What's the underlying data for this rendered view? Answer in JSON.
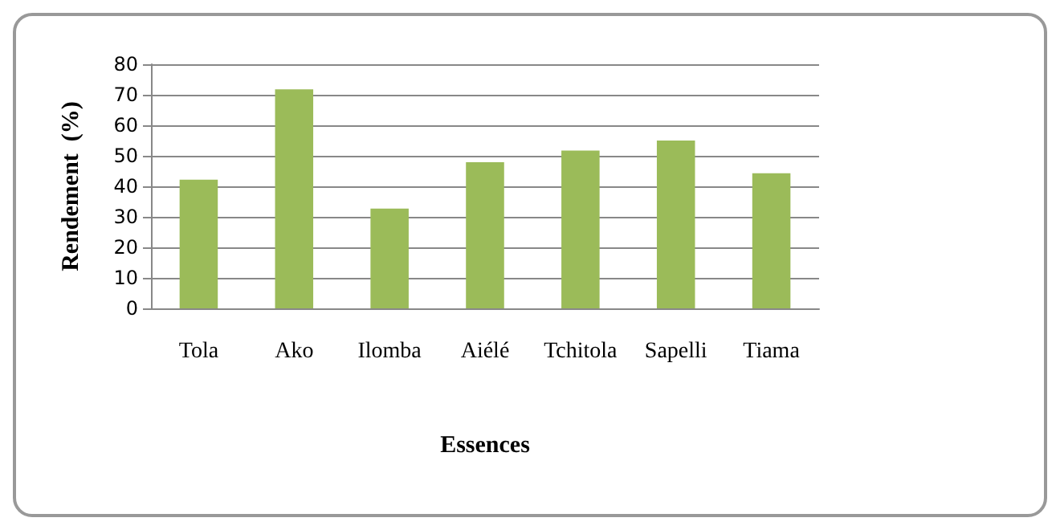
{
  "chart_data": {
    "type": "bar",
    "xlabel": "Essences",
    "ylabel": "Rendement  (%)",
    "categories": [
      "Tola",
      "Ako",
      "Ilomba",
      "Aiélé",
      "Tchitola",
      "Sapelli",
      "Tiama"
    ],
    "values": [
      42.2,
      71.8,
      32.7,
      47.9,
      51.7,
      55,
      44.3
    ],
    "color": "#9bbb59",
    "ylim": [
      0,
      80
    ],
    "yticks": [
      0,
      10,
      20,
      30,
      40,
      50,
      60,
      70,
      80
    ],
    "grid": "y"
  }
}
